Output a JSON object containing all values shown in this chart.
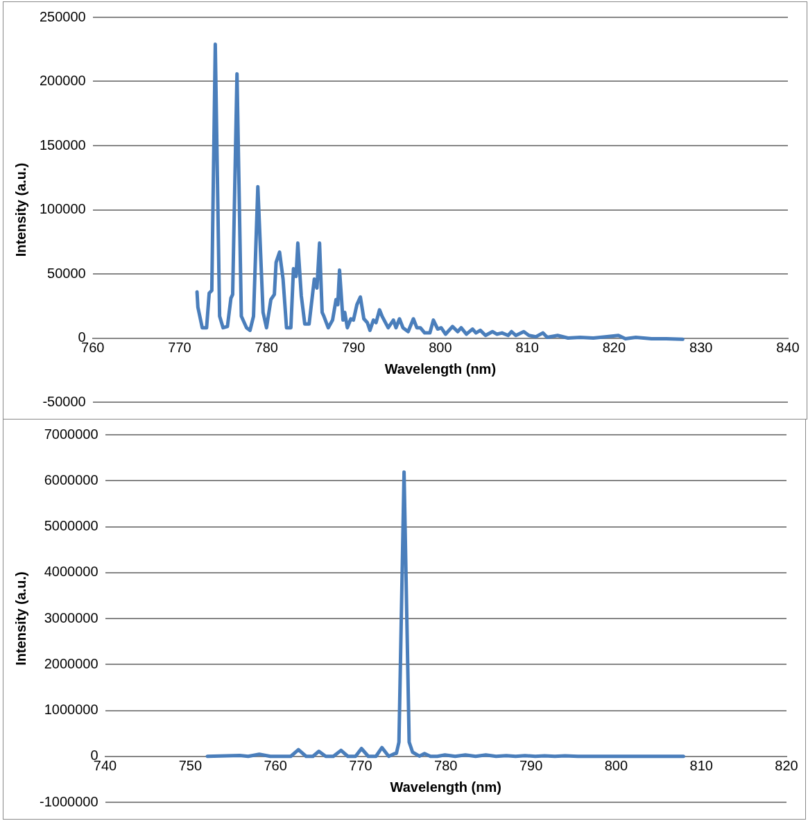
{
  "chart_data": [
    {
      "type": "line",
      "xlabel": "Wavelength (nm)",
      "ylabel": "Intensity (a.u.)",
      "color": "#4a7ebb",
      "grid": "y",
      "xlim": [
        760,
        840
      ],
      "xticks": [
        760,
        770,
        780,
        790,
        800,
        810,
        820,
        830,
        840
      ],
      "ylim": [
        -50000,
        250000
      ],
      "yticks": [
        -50000,
        0,
        50000,
        100000,
        150000,
        200000,
        250000
      ],
      "x": [
        772.0,
        772.1,
        772.6,
        773.1,
        773.4,
        773.7,
        774.1,
        774.6,
        775.0,
        775.5,
        775.9,
        776.1,
        776.6,
        777.1,
        777.7,
        778.1,
        778.5,
        779.0,
        779.6,
        780.0,
        780.5,
        780.9,
        781.1,
        781.5,
        781.9,
        782.3,
        782.8,
        783.1,
        783.4,
        783.6,
        784.0,
        784.4,
        784.9,
        785.5,
        785.8,
        786.1,
        786.4,
        786.6,
        787.1,
        787.6,
        788.0,
        788.2,
        788.4,
        788.8,
        789.0,
        789.3,
        789.7,
        790.0,
        790.4,
        790.8,
        791.2,
        791.6,
        791.9,
        792.3,
        792.6,
        793.0,
        793.3,
        794.0,
        794.6,
        794.9,
        795.3,
        795.7,
        796.3,
        796.9,
        797.3,
        797.7,
        798.2,
        798.8,
        799.2,
        799.7,
        800.1,
        800.6,
        801.4,
        802.0,
        802.4,
        803.0,
        803.7,
        804.1,
        804.6,
        805.2,
        806.0,
        806.5,
        807.1,
        807.8,
        808.2,
        808.7,
        809.6,
        810.2,
        811.0,
        811.8,
        812.3,
        813.5,
        814.7,
        816.1,
        817.6,
        819.0,
        820.5,
        821.3,
        822.5,
        824.3,
        826.0,
        827.9
      ],
      "values": [
        36000,
        24000,
        8000,
        8000,
        35000,
        37000,
        229000,
        17000,
        8000,
        9000,
        31000,
        34000,
        206000,
        17000,
        8000,
        6000,
        17000,
        118000,
        20000,
        8000,
        30000,
        34000,
        59000,
        67000,
        46000,
        8000,
        8000,
        54000,
        48000,
        74000,
        33000,
        11000,
        11000,
        46000,
        39000,
        74000,
        20000,
        17000,
        8000,
        14000,
        30000,
        26000,
        53000,
        14000,
        20000,
        8000,
        15000,
        14000,
        26000,
        32000,
        15000,
        12000,
        6000,
        14000,
        12000,
        22000,
        17000,
        8000,
        14000,
        8000,
        15000,
        8000,
        5000,
        15000,
        8000,
        8000,
        4000,
        4000,
        14000,
        7000,
        8000,
        3000,
        9000,
        5000,
        8000,
        3000,
        7000,
        4000,
        6000,
        2000,
        5000,
        3000,
        4000,
        2000,
        5000,
        2000,
        5000,
        2000,
        1000,
        4000,
        500,
        2000,
        0,
        500,
        0,
        1000,
        2000,
        -500,
        500,
        -500,
        -500,
        -1000
      ]
    },
    {
      "type": "line",
      "xlabel": "Wavelength (nm)",
      "ylabel": "Intensity (a.u.)",
      "color": "#4a7ebb",
      "grid": "y",
      "xlim": [
        740,
        820
      ],
      "xticks": [
        740,
        750,
        760,
        770,
        780,
        790,
        800,
        810,
        820
      ],
      "ylim": [
        -1000000,
        7000000
      ],
      "yticks": [
        -1000000,
        0,
        1000000,
        2000000,
        3000000,
        4000000,
        5000000,
        6000000,
        7000000
      ],
      "x": [
        752.0,
        755.8,
        756.8,
        758.1,
        759.4,
        761.8,
        762.7,
        763.6,
        764.4,
        765.1,
        765.9,
        766.8,
        767.7,
        768.5,
        769.4,
        770.1,
        770.9,
        771.8,
        772.5,
        773.3,
        774.0,
        774.2,
        774.5,
        775.1,
        775.7,
        776.1,
        776.9,
        777.5,
        778.2,
        779.0,
        779.9,
        781.1,
        782.3,
        783.5,
        784.7,
        785.9,
        787.1,
        788.2,
        789.3,
        790.5,
        791.6,
        792.8,
        794.0,
        795.5,
        800.0,
        804.0,
        807.9
      ],
      "values": [
        0,
        20000,
        0,
        45000,
        0,
        0,
        145000,
        0,
        0,
        110000,
        0,
        0,
        130000,
        0,
        0,
        170000,
        0,
        0,
        190000,
        0,
        60000,
        65000,
        310000,
        6190000,
        310000,
        90000,
        5000,
        60000,
        0,
        0,
        30000,
        0,
        30000,
        0,
        30000,
        0,
        15000,
        0,
        15000,
        0,
        10000,
        0,
        10000,
        0,
        0,
        0,
        0
      ]
    }
  ]
}
